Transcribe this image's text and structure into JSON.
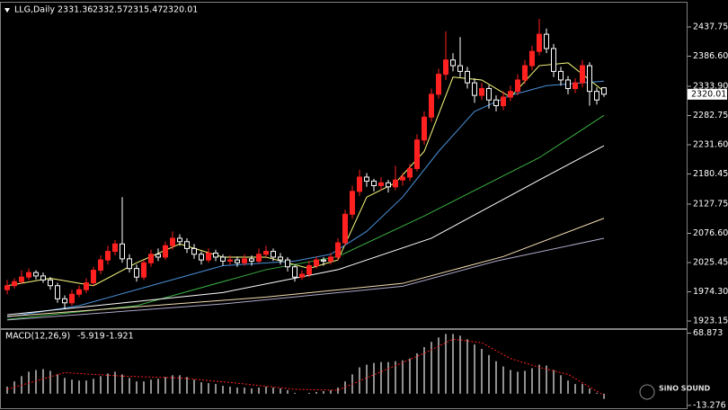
{
  "chart_data": [
    {
      "type": "candlestick",
      "title": "LLG,Daily",
      "up_color": "#ff2020",
      "down_color": "#ffffff",
      "ylim": [
        1910.6,
        2477.1
      ],
      "yticks": [
        1923.15,
        {
          "value": 1974.3,
          "label": "1974.30"
        },
        2025.45,
        {
          "value": 2076.6,
          "label": "2076.60"
        },
        2127.75,
        2180.45,
        {
          "value": 2231.6,
          "label": "2231.60"
        },
        2282.75,
        {
          "value": 2333.9,
          "label": "2333.90"
        },
        {
          "value": 2386.6,
          "label": "2386.60"
        },
        2437.75
      ],
      "ohlc": [
        [
          1978,
          1995,
          1970,
          1985
        ],
        [
          1985,
          1998,
          1980,
          1992
        ],
        [
          1992,
          2012,
          1988,
          2000
        ],
        [
          2000,
          2015,
          1995,
          2008
        ],
        [
          2008,
          2012,
          1996,
          2002
        ],
        [
          2002,
          2008,
          1990,
          1995
        ],
        [
          1995,
          2000,
          1978,
          1985
        ],
        [
          1985,
          1990,
          1955,
          1962
        ],
        [
          1962,
          1968,
          1945,
          1955
        ],
        [
          1955,
          1978,
          1950,
          1970
        ],
        [
          1970,
          1985,
          1965,
          1978
        ],
        [
          1978,
          1998,
          1972,
          1990
        ],
        [
          1990,
          2018,
          1985,
          2012
        ],
        [
          2012,
          2038,
          2005,
          2030
        ],
        [
          2030,
          2055,
          2022,
          2045
        ],
        [
          2045,
          2065,
          2038,
          2058
        ],
        [
          2058,
          2140,
          2025,
          2032
        ],
        [
          2032,
          2040,
          2008,
          2015
        ],
        [
          2015,
          2022,
          1992,
          2000
        ],
        [
          2000,
          2030,
          1995,
          2025
        ],
        [
          2025,
          2048,
          2018,
          2040
        ],
        [
          2040,
          2050,
          2028,
          2035
        ],
        [
          2035,
          2062,
          2030,
          2055
        ],
        [
          2055,
          2080,
          2048,
          2068
        ],
        [
          2068,
          2075,
          2055,
          2062
        ],
        [
          2062,
          2068,
          2042,
          2050
        ],
        [
          2050,
          2058,
          2032,
          2040
        ],
        [
          2040,
          2045,
          2022,
          2030
        ],
        [
          2030,
          2050,
          2025,
          2042
        ],
        [
          2042,
          2048,
          2028,
          2035
        ],
        [
          2035,
          2040,
          2020,
          2028
        ],
        [
          2028,
          2038,
          2022,
          2030
        ],
        [
          2030,
          2036,
          2018,
          2025
        ],
        [
          2025,
          2040,
          2020,
          2032
        ],
        [
          2032,
          2038,
          2020,
          2028
        ],
        [
          2028,
          2050,
          2024,
          2040
        ],
        [
          2040,
          2055,
          2035,
          2045
        ],
        [
          2045,
          2050,
          2028,
          2035
        ],
        [
          2035,
          2042,
          2022,
          2030
        ],
        [
          2030,
          2035,
          2010,
          2018
        ],
        [
          2018,
          2022,
          1992,
          2000
        ],
        [
          2000,
          2012,
          1995,
          2005
        ],
        [
          2005,
          2028,
          2000,
          2020
        ],
        [
          2020,
          2036,
          2015,
          2030
        ],
        [
          2030,
          2035,
          2020,
          2028
        ],
        [
          2028,
          2042,
          2022,
          2035
        ],
        [
          2035,
          2068,
          2030,
          2060
        ],
        [
          2060,
          2118,
          2055,
          2110
        ],
        [
          2110,
          2160,
          2102,
          2150
        ],
        [
          2150,
          2188,
          2142,
          2175
        ],
        [
          2175,
          2182,
          2158,
          2168
        ],
        [
          2168,
          2172,
          2150,
          2160
        ],
        [
          2160,
          2175,
          2152,
          2165
        ],
        [
          2165,
          2170,
          2148,
          2158
        ],
        [
          2158,
          2195,
          2152,
          2170
        ],
        [
          2170,
          2182,
          2160,
          2175
        ],
        [
          2175,
          2198,
          2168,
          2190
        ],
        [
          2190,
          2250,
          2185,
          2240
        ],
        [
          2240,
          2290,
          2232,
          2280
        ],
        [
          2280,
          2330,
          2272,
          2320
        ],
        [
          2320,
          2365,
          2312,
          2355
        ],
        [
          2355,
          2430,
          2345,
          2380
        ],
        [
          2380,
          2392,
          2360,
          2370
        ],
        [
          2370,
          2420,
          2350,
          2360
        ],
        [
          2360,
          2368,
          2330,
          2340
        ],
        [
          2340,
          2348,
          2305,
          2318
        ],
        [
          2318,
          2340,
          2310,
          2330
        ],
        [
          2330,
          2336,
          2295,
          2310
        ],
        [
          2310,
          2318,
          2290,
          2300
        ],
        [
          2300,
          2325,
          2292,
          2315
        ],
        [
          2315,
          2335,
          2308,
          2325
        ],
        [
          2325,
          2355,
          2318,
          2345
        ],
        [
          2345,
          2380,
          2338,
          2370
        ],
        [
          2370,
          2405,
          2362,
          2395
        ],
        [
          2395,
          2452,
          2388,
          2425
        ],
        [
          2425,
          2435,
          2392,
          2400
        ],
        [
          2400,
          2408,
          2350,
          2360
        ],
        [
          2360,
          2368,
          2335,
          2345
        ],
        [
          2345,
          2352,
          2320,
          2330
        ],
        [
          2330,
          2348,
          2322,
          2340
        ],
        [
          2340,
          2380,
          2332,
          2370
        ],
        [
          2370,
          2376,
          2300,
          2325
        ],
        [
          2325,
          2332,
          2302,
          2310
        ],
        [
          2331.36,
          2332.57,
          2315.47,
          2320.01
        ]
      ],
      "lines": [
        {
          "color": "#ffff80",
          "x": [
            0,
            6,
            12,
            18,
            24,
            30,
            36,
            42,
            46,
            50,
            54,
            58,
            62,
            66,
            70,
            74,
            78,
            83
          ],
          "values": [
            1985,
            1998,
            1985,
            2025,
            2058,
            2035,
            2035,
            2015,
            2030,
            2140,
            2165,
            2220,
            2350,
            2345,
            2315,
            2370,
            2375,
            2325
          ]
        },
        {
          "color": "#4a90d9",
          "x": [
            0,
            10,
            20,
            30,
            40,
            45,
            50,
            55,
            60,
            65,
            70,
            75,
            83
          ],
          "values": [
            1930,
            1950,
            1985,
            2020,
            2028,
            2040,
            2080,
            2140,
            2220,
            2290,
            2318,
            2335,
            2343
          ]
        },
        {
          "color": "#3cb043",
          "x": [
            0,
            18,
            36,
            46,
            58,
            74,
            83
          ],
          "values": [
            1926,
            1950,
            2013,
            2036,
            2107,
            2209,
            2283
          ]
        },
        {
          "color": "#ffffff",
          "x": [
            0,
            30,
            46,
            59,
            74,
            83
          ],
          "values": [
            1934,
            1973,
            2013,
            2068,
            2170,
            2230
          ]
        },
        {
          "color": "#f5deb3",
          "x": [
            0,
            36,
            55,
            69,
            83
          ],
          "values": [
            1931,
            1965,
            1989,
            2036,
            2103
          ]
        },
        {
          "color": "#b0a8c8",
          "x": [
            0,
            30,
            55,
            68,
            83
          ],
          "values": [
            1925,
            1953,
            1984,
            2028,
            2068
          ]
        }
      ]
    },
    {
      "type": "macd",
      "title": "MACD(12,26,9)",
      "ylim": [
        -16.5,
        72.5
      ],
      "yticks": [
        -13.276,
        68.873
      ],
      "hist_color": "#c0c0c0",
      "signal_color": "#ff2020",
      "values": [
        8,
        14,
        20,
        25,
        27,
        28,
        26,
        22,
        18,
        16,
        15,
        15,
        17,
        20,
        23,
        25,
        22,
        18,
        14,
        14,
        16,
        17,
        19,
        21,
        21,
        19,
        16,
        13,
        12,
        11,
        9,
        8,
        7,
        7,
        6,
        7,
        8,
        7,
        6,
        4,
        1,
        0,
        1,
        2,
        3,
        4,
        7,
        14,
        22,
        30,
        33,
        35,
        36,
        36,
        37,
        38,
        40,
        46,
        53,
        59,
        64,
        68,
        68,
        66,
        62,
        56,
        51,
        44,
        37,
        31,
        27,
        25,
        26,
        29,
        33,
        32,
        27,
        21,
        15,
        11,
        11,
        6,
        1,
        -5.919
      ],
      "signal": {
        "x": [
          0,
          8,
          16,
          24,
          32,
          40,
          46,
          52,
          58,
          62,
          66,
          70,
          74,
          78,
          83
        ],
        "values": [
          5,
          24,
          20,
          18,
          12,
          5,
          4,
          25,
          46,
          62,
          58,
          40,
          30,
          22,
          -1.921
        ]
      },
      "watermark": "SiNO SOUND"
    }
  ]
}
